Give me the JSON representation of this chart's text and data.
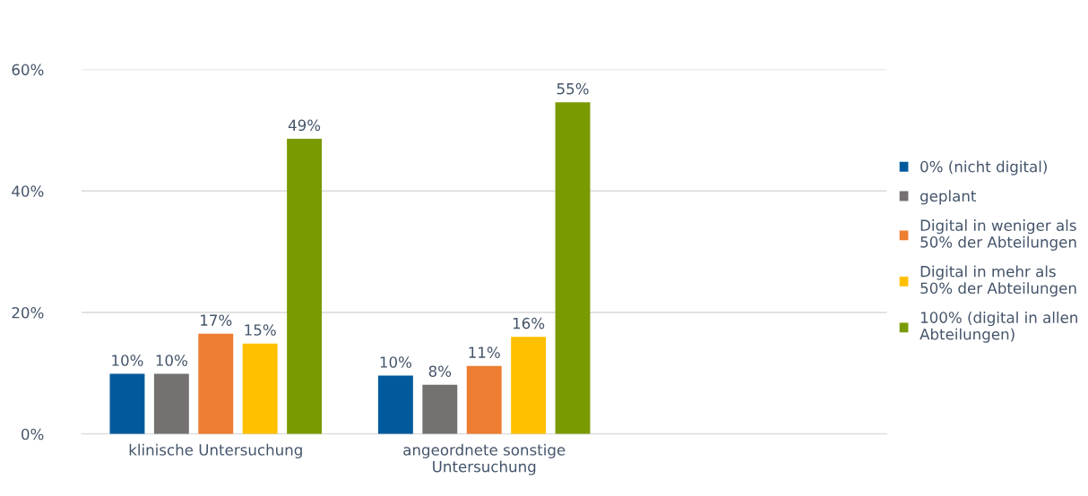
{
  "chart_data": {
    "type": "bar",
    "categories": [
      "klinische Untersuchung",
      "angeordnete sonstige\nUntersuchung",
      null
    ],
    "series": [
      {
        "name": "0% (nicht digital)",
        "color": "#005a9c",
        "values": [
          9.9,
          9.6,
          null
        ],
        "value_labels": [
          "10%",
          "10%",
          null
        ]
      },
      {
        "name": "geplant",
        "color": "#767171",
        "values": [
          9.9,
          8.1,
          null
        ],
        "value_labels": [
          "10%",
          "8%",
          null
        ]
      },
      {
        "name": "Digital in weniger als\n50% der Abteilungen",
        "color": "#ed7d31",
        "values": [
          16.5,
          11.2,
          null
        ],
        "value_labels": [
          "17%",
          "11%",
          null
        ]
      },
      {
        "name": "Digital in mehr als\n50% der Abteilungen",
        "color": "#ffc000",
        "values": [
          14.9,
          16.0,
          null
        ],
        "value_labels": [
          "15%",
          "16%",
          null
        ]
      },
      {
        "name": "100% (digital in allen\nAbteilungen)",
        "color": "#7a9a01",
        "values": [
          48.6,
          54.6,
          null
        ],
        "value_labels": [
          "49%",
          "55%",
          null
        ]
      }
    ],
    "ylim": [
      0,
      60
    ],
    "yticks": [
      {
        "value": 0,
        "label": "0%"
      },
      {
        "value": 20,
        "label": "20%"
      },
      {
        "value": 40,
        "label": "40%"
      },
      {
        "value": 60,
        "label": "60%"
      }
    ],
    "grid": "y",
    "legend": "right"
  }
}
